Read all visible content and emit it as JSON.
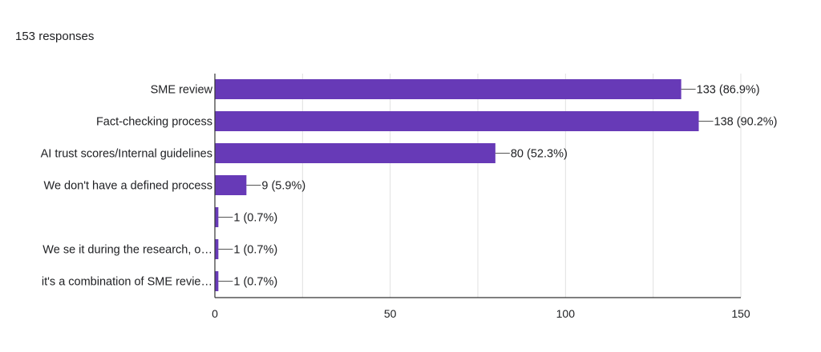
{
  "header": {
    "responses_text": "153 responses"
  },
  "colors": {
    "bar": "#673ab7",
    "grid": "#e0e0e0",
    "axis": "#333333",
    "text": "#202124"
  },
  "chart_data": {
    "type": "bar",
    "orientation": "horizontal",
    "categories": [
      "SME review",
      "Fact-checking process",
      "AI trust scores/Internal guidelines",
      "We don't have a defined process",
      "",
      "We se it during the research, o…",
      "it's a combination of SME revie…"
    ],
    "values": [
      133,
      138,
      80,
      9,
      1,
      1,
      1
    ],
    "data_labels": [
      "133 (86.9%)",
      "138 (90.2%)",
      "80 (52.3%)",
      "9 (5.9%)",
      "1 (0.7%)",
      "1 (0.7%)",
      "1 (0.7%)"
    ],
    "x_ticks": [
      0,
      50,
      100,
      150
    ],
    "xlim": [
      0,
      150
    ],
    "grid": true,
    "legend": "none"
  }
}
